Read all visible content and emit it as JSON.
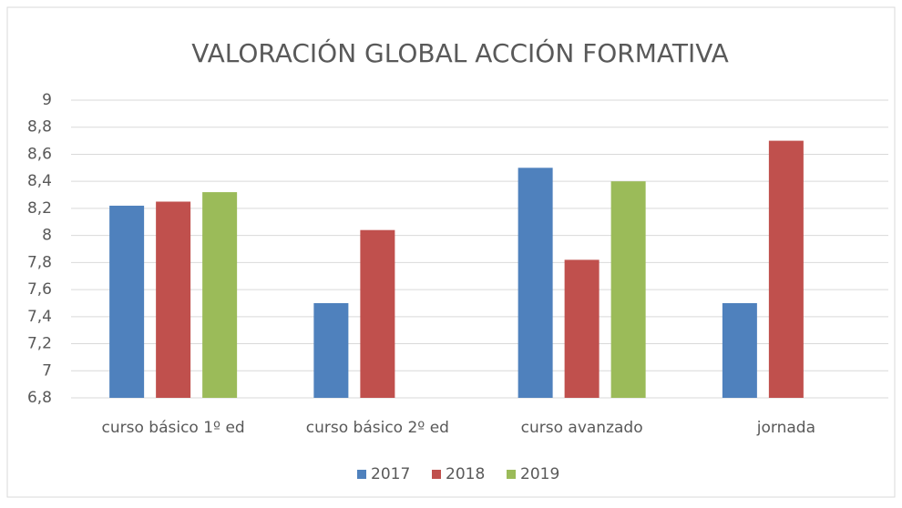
{
  "chart_data": {
    "type": "bar",
    "title": "VALORACIÓN GLOBAL ACCIÓN FORMATIVA",
    "categories": [
      "curso básico 1º ed",
      "curso básico 2º ed",
      "curso avanzado",
      "jornada"
    ],
    "series": [
      {
        "name": "2017",
        "color": "#4f81bd",
        "values": [
          8.22,
          7.5,
          8.5,
          7.5
        ]
      },
      {
        "name": "2018",
        "color": "#c0504d",
        "values": [
          8.25,
          8.04,
          7.82,
          8.7
        ]
      },
      {
        "name": "2019",
        "color": "#9bbb59",
        "values": [
          8.32,
          null,
          8.4,
          null
        ]
      }
    ],
    "ylim": [
      6.8,
      9
    ],
    "yticks": [
      {
        "value": 6.8,
        "label": "6,8"
      },
      7,
      {
        "value": 7.2,
        "label": "7,2"
      },
      {
        "value": 7.4,
        "label": "7,4"
      },
      {
        "value": 7.6,
        "label": "7,6"
      },
      {
        "value": 7.8,
        "label": "7,8"
      },
      8,
      {
        "value": 8.2,
        "label": "8,2"
      },
      {
        "value": 8.4,
        "label": "8,4"
      },
      {
        "value": 8.6,
        "label": "8,6"
      },
      {
        "value": 8.8,
        "label": "8,8"
      },
      9
    ],
    "grid": true,
    "legend": "bottom"
  }
}
